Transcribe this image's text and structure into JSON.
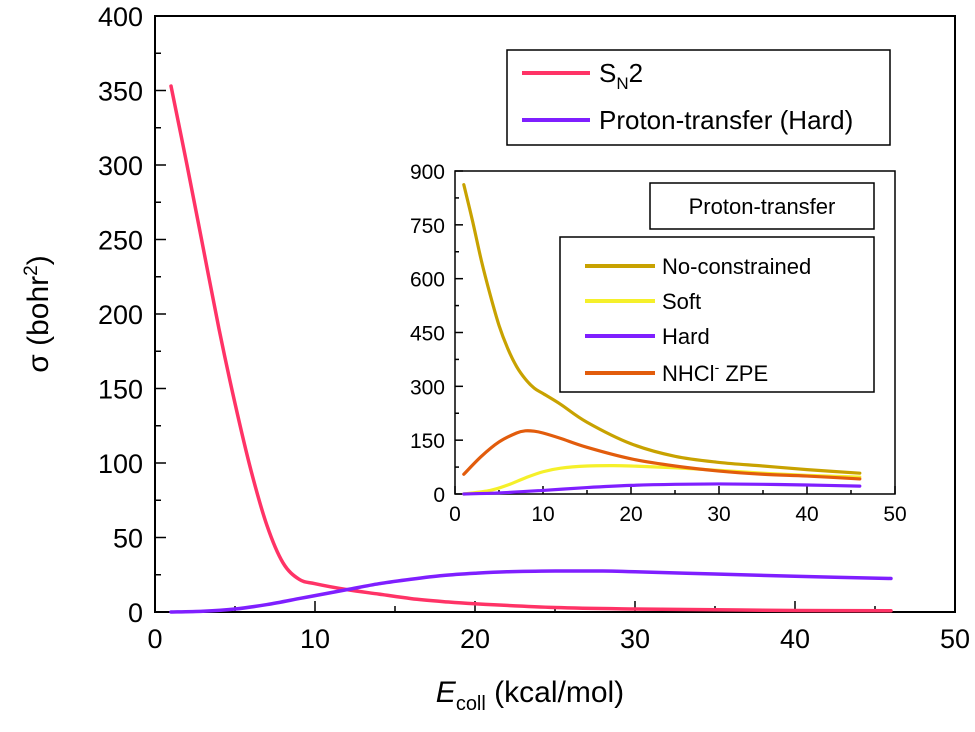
{
  "chart_data": [
    {
      "type": "line",
      "panel": "main",
      "xlabel": {
        "symbol": "E",
        "sub": "coll",
        "unit": "(kcal/mol)"
      },
      "ylabel": {
        "symbol": "σ",
        "unit_before": "(bohr",
        "sup": "2",
        "unit_after": ")"
      },
      "xlim": [
        0,
        50
      ],
      "ylim": [
        0,
        400
      ],
      "xticks": [
        "0",
        "10",
        "20",
        "30",
        "40",
        "50"
      ],
      "yticks": [
        "0",
        "50",
        "100",
        "150",
        "200",
        "250",
        "300",
        "350",
        "400"
      ],
      "legend_position": "top-right",
      "legend": [
        {
          "name": "S",
          "sub": "N",
          "tail": "2",
          "color": "#ff3366"
        },
        {
          "name": "Proton-transfer (Hard)",
          "color": "#7f1fff"
        }
      ],
      "series": [
        {
          "color": "#ff3366",
          "x": [
            1,
            2,
            3,
            4,
            5,
            6,
            7,
            8,
            9,
            10,
            12,
            14,
            16,
            18,
            20,
            25,
            30,
            35,
            40,
            46
          ],
          "y": [
            353,
            300,
            245,
            190,
            140,
            95,
            58,
            33,
            22,
            19,
            15,
            12,
            9,
            7,
            5.5,
            3,
            2,
            1.5,
            1,
            0.8
          ]
        },
        {
          "color": "#7f1fff",
          "x": [
            1,
            3,
            5,
            7,
            9,
            10,
            12,
            14,
            16,
            18,
            20,
            22,
            25,
            28,
            30,
            35,
            40,
            46
          ],
          "y": [
            0,
            0.5,
            2,
            5,
            9,
            11,
            15,
            19,
            22,
            24.5,
            26,
            27,
            27.5,
            27.5,
            27,
            25.5,
            24,
            22.5
          ]
        }
      ]
    },
    {
      "type": "line",
      "panel": "inset",
      "title": "Proton-transfer",
      "xlim": [
        0,
        50
      ],
      "ylim": [
        0,
        900
      ],
      "xticks": [
        "0",
        "10",
        "20",
        "30",
        "40",
        "50"
      ],
      "yticks": [
        "0",
        "150",
        "300",
        "450",
        "600",
        "750",
        "900"
      ],
      "legend_position": "right",
      "legend": [
        {
          "name": "No-constrained",
          "color": "#c8a200"
        },
        {
          "name": "Soft",
          "color": "#f5f02a"
        },
        {
          "name": "Hard",
          "color": "#7f1fff"
        },
        {
          "name": "NHCl",
          "sup": "-",
          "tail": " ZPE",
          "color": "#e25c0c"
        }
      ],
      "series": [
        {
          "color": "#c8a200",
          "x": [
            1,
            2,
            3,
            4,
            5,
            6,
            7,
            8,
            9,
            10,
            12,
            15,
            20,
            25,
            30,
            35,
            40,
            46
          ],
          "y": [
            862,
            760,
            650,
            555,
            470,
            405,
            355,
            320,
            295,
            280,
            250,
            200,
            140,
            105,
            88,
            78,
            68,
            58
          ]
        },
        {
          "color": "#f5f02a",
          "x": [
            1,
            4,
            6,
            8,
            10,
            12,
            15,
            18,
            20,
            25,
            30,
            35,
            40,
            46
          ],
          "y": [
            0,
            10,
            25,
            45,
            62,
            72,
            78,
            79,
            78,
            73,
            66,
            58,
            52,
            47
          ]
        },
        {
          "color": "#7f1fff",
          "x": [
            1,
            5,
            10,
            15,
            20,
            25,
            30,
            35,
            40,
            46
          ],
          "y": [
            0,
            3,
            10,
            18,
            24,
            27,
            28,
            27,
            25,
            22
          ]
        },
        {
          "color": "#e25c0c",
          "x": [
            1,
            3,
            5,
            7,
            8,
            9,
            10,
            12,
            15,
            20,
            25,
            30,
            35,
            40,
            46
          ],
          "y": [
            55,
            105,
            145,
            170,
            176,
            175,
            170,
            155,
            130,
            98,
            78,
            64,
            55,
            50,
            42
          ]
        }
      ]
    }
  ]
}
